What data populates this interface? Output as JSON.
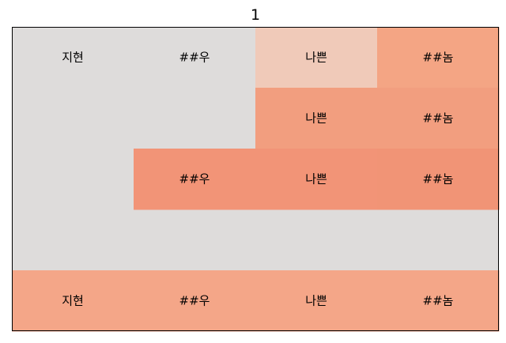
{
  "chart_data": {
    "type": "heatmap",
    "title": "1",
    "rows": 5,
    "columns": 4,
    "base_color": "#dedcdb",
    "cells": [
      {
        "row": 0,
        "col": 0,
        "label": "지현",
        "color": "#dedcdb"
      },
      {
        "row": 0,
        "col": 1,
        "label": "##우",
        "color": "#dedcdb"
      },
      {
        "row": 0,
        "col": 2,
        "label": "나쁜",
        "color": "#f0cab9"
      },
      {
        "row": 0,
        "col": 3,
        "label": "##놈",
        "color": "#f4a584"
      },
      {
        "row": 1,
        "col": 2,
        "label": "나쁜",
        "color": "#f29e7f"
      },
      {
        "row": 1,
        "col": 3,
        "label": "##놈",
        "color": "#f29e7f"
      },
      {
        "row": 2,
        "col": 1,
        "label": "##우",
        "color": "#f29477"
      },
      {
        "row": 2,
        "col": 2,
        "label": "나쁜",
        "color": "#f29477"
      },
      {
        "row": 2,
        "col": 3,
        "label": "##놈",
        "color": "#f19476"
      },
      {
        "row": 4,
        "col": 0,
        "label": "지현",
        "color": "#f4a688"
      },
      {
        "row": 4,
        "col": 1,
        "label": "##우",
        "color": "#f4a688"
      },
      {
        "row": 4,
        "col": 2,
        "label": "나쁜",
        "color": "#f4a688"
      },
      {
        "row": 4,
        "col": 3,
        "label": "##놈",
        "color": "#f4a688"
      }
    ]
  }
}
